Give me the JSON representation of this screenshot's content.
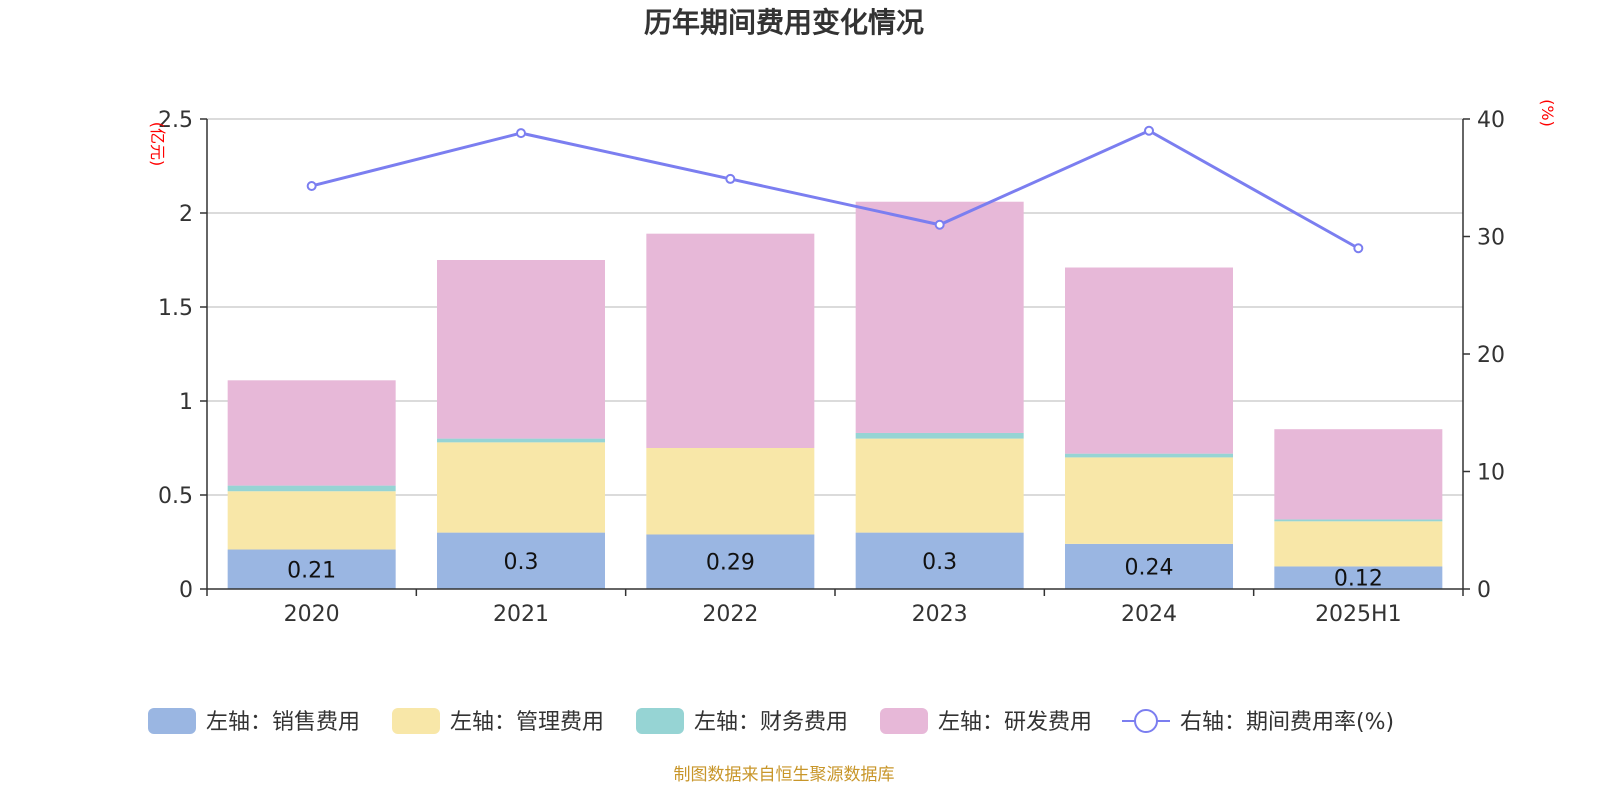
{
  "chart_data": {
    "type": "bar",
    "stacked": true,
    "title": "历年期间费用变化情况",
    "categories": [
      "2020",
      "2021",
      "2022",
      "2023",
      "2024",
      "2025H1"
    ],
    "left_axis": {
      "unit": "(亿元)",
      "range": [
        0,
        2.5
      ],
      "ticks": [
        "0",
        "0.5",
        "1",
        "1.5",
        "2",
        "2.5"
      ]
    },
    "right_axis": {
      "unit": "(%)",
      "range": [
        0,
        40
      ],
      "ticks": [
        "0",
        "10",
        "20",
        "30",
        "40"
      ]
    },
    "series": [
      {
        "name": "左轴：销售费用",
        "color": "#9ab6e2",
        "values": [
          0.21,
          0.3,
          0.29,
          0.3,
          0.24,
          0.12
        ],
        "labels": [
          "0.21",
          "0.3",
          "0.29",
          "0.3",
          "0.24",
          "0.12"
        ]
      },
      {
        "name": "左轴：管理费用",
        "color": "#f8e7a8",
        "values": [
          0.31,
          0.48,
          0.46,
          0.5,
          0.46,
          0.24
        ]
      },
      {
        "name": "左轴：财务费用",
        "color": "#96d4d4",
        "values": [
          0.03,
          0.02,
          0.0,
          0.03,
          0.02,
          0.01
        ]
      },
      {
        "name": "左轴：研发费用",
        "color": "#e7b8d8",
        "values": [
          0.56,
          0.95,
          1.14,
          1.23,
          0.99,
          0.48
        ]
      }
    ],
    "line_series": {
      "name": "右轴：期间费用率(%)",
      "color": "#7b7ef0",
      "values": [
        34.3,
        38.8,
        34.9,
        31.0,
        39.0,
        29.0
      ]
    },
    "grid": true,
    "legend_position": "bottom"
  },
  "source_text": "制图数据来自恒生聚源数据库"
}
